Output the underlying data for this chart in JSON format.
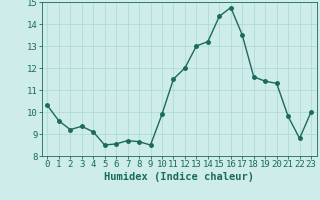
{
  "x": [
    0,
    1,
    2,
    3,
    4,
    5,
    6,
    7,
    8,
    9,
    10,
    11,
    12,
    13,
    14,
    15,
    16,
    17,
    18,
    19,
    20,
    21,
    22,
    23
  ],
  "y": [
    10.3,
    9.6,
    9.2,
    9.35,
    9.1,
    8.5,
    8.55,
    8.7,
    8.65,
    8.5,
    9.9,
    11.5,
    12.0,
    13.0,
    13.2,
    14.35,
    14.75,
    13.5,
    11.6,
    11.4,
    11.3,
    9.8,
    8.8,
    10.0
  ],
  "line_color": "#1a6b5a",
  "marker": "o",
  "markersize": 2.5,
  "linewidth": 1.0,
  "background_color": "#ceecea",
  "grid_color": "#a8d8d4",
  "xlabel": "Humidex (Indice chaleur)",
  "xlim": [
    -0.5,
    23.5
  ],
  "ylim": [
    8,
    15
  ],
  "yticks": [
    8,
    9,
    10,
    11,
    12,
    13,
    14,
    15
  ],
  "xticks": [
    0,
    1,
    2,
    3,
    4,
    5,
    6,
    7,
    8,
    9,
    10,
    11,
    12,
    13,
    14,
    15,
    16,
    17,
    18,
    19,
    20,
    21,
    22,
    23
  ],
  "tick_color": "#1a6b5a",
  "label_color": "#1a6b5a",
  "xlabel_fontsize": 7.5,
  "tick_fontsize": 6.5
}
